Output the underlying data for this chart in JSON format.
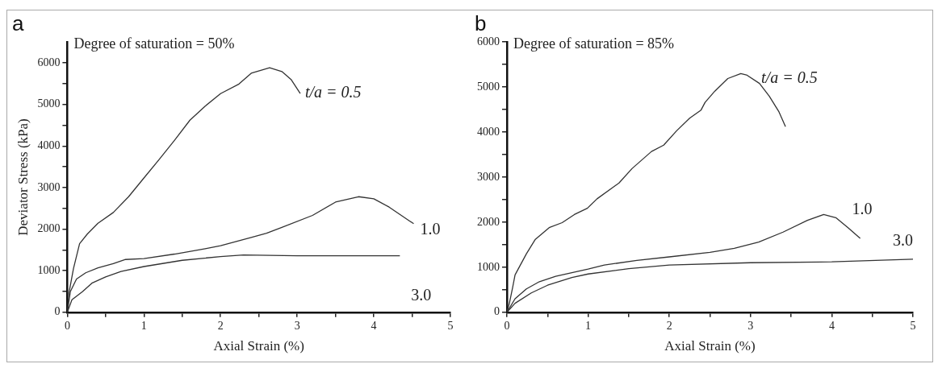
{
  "chart_data": [
    {
      "type": "line",
      "title": "a",
      "annotations": [
        "Degree of saturation = 50%"
      ],
      "xlabel": "Axial Strain (%)",
      "ylabel": "Deviator Stress (kPa)",
      "xlim": [
        0,
        5
      ],
      "xticks": [
        0,
        {
          "value": 0.5,
          "label": null
        },
        1,
        {
          "value": 1.5,
          "label": null
        },
        2,
        {
          "value": 2.5,
          "label": null
        },
        3,
        {
          "value": 3.5,
          "label": null
        },
        4,
        {
          "value": 4.5,
          "label": null
        },
        5
      ],
      "ylim": [
        0,
        6500
      ],
      "yticks": [
        0,
        {
          "value": 500,
          "label": null
        },
        1000,
        {
          "value": 1500,
          "label": null
        },
        2000,
        {
          "value": 2500,
          "label": null
        },
        3000,
        {
          "value": 3500,
          "label": null
        },
        4000,
        {
          "value": 4500,
          "label": null
        },
        5000,
        {
          "value": 5500,
          "label": null
        },
        6000
      ],
      "grid": false,
      "legend": false,
      "marker": "none",
      "line_style": "solid",
      "series": [
        {
          "name": "t/a = 0.5",
          "color": "#333333",
          "x": [
            0,
            0.02,
            0.08,
            0.16,
            0.26,
            0.4,
            0.6,
            0.8,
            1.0,
            1.2,
            1.4,
            1.6,
            1.8,
            2.0,
            2.24,
            2.4,
            2.64,
            2.8,
            2.92,
            3.04
          ],
          "values": [
            0,
            450,
            1050,
            1650,
            1880,
            2140,
            2400,
            2780,
            3230,
            3680,
            4140,
            4620,
            4960,
            5260,
            5490,
            5750,
            5880,
            5790,
            5600,
            5260
          ]
        },
        {
          "name": "1.0",
          "color": "#333333",
          "x": [
            0,
            0.04,
            0.12,
            0.24,
            0.4,
            0.6,
            0.76,
            1.0,
            1.4,
            1.8,
            2.0,
            2.4,
            2.6,
            2.8,
            3.2,
            3.5,
            3.8,
            4.0,
            4.2,
            4.52
          ],
          "values": [
            0,
            500,
            800,
            950,
            1070,
            1170,
            1270,
            1290,
            1400,
            1530,
            1600,
            1800,
            1900,
            2040,
            2330,
            2650,
            2780,
            2730,
            2530,
            2130
          ]
        },
        {
          "name": "3.0",
          "color": "#333333",
          "x": [
            0,
            0.06,
            0.2,
            0.32,
            0.5,
            0.7,
            1.0,
            1.5,
            2.0,
            2.3,
            3.0,
            4.34
          ],
          "values": [
            0,
            300,
            500,
            700,
            850,
            980,
            1100,
            1250,
            1340,
            1380,
            1360,
            1360
          ]
        }
      ]
    },
    {
      "type": "line",
      "title": "b",
      "annotations": [
        "Degree of saturation = 85%"
      ],
      "xlabel": "Axial Strain (%)",
      "xlim": [
        0,
        5
      ],
      "xticks": [
        0,
        {
          "value": 0.5,
          "label": null
        },
        1,
        {
          "value": 1.5,
          "label": null
        },
        2,
        {
          "value": 2.5,
          "label": null
        },
        3,
        {
          "value": 3.5,
          "label": null
        },
        4,
        {
          "value": 4.5,
          "label": null
        },
        5
      ],
      "ylim": [
        0,
        6000
      ],
      "yticks": [
        0,
        {
          "value": 500,
          "label": null
        },
        1000,
        {
          "value": 1500,
          "label": null
        },
        2000,
        {
          "value": 2500,
          "label": null
        },
        3000,
        {
          "value": 3500,
          "label": null
        },
        4000,
        {
          "value": 4500,
          "label": null
        },
        5000,
        {
          "value": 5500,
          "label": null
        },
        6000
      ],
      "grid": false,
      "legend": false,
      "marker": "none",
      "line_style": "solid",
      "series": [
        {
          "name": "t/a = 0.5",
          "color": "#333333",
          "x": [
            0,
            0.03,
            0.07,
            0.1,
            0.24,
            0.35,
            0.52,
            0.68,
            0.83,
            0.99,
            1.11,
            1.38,
            1.54,
            1.78,
            1.93,
            2.09,
            2.25,
            2.39,
            2.44,
            2.56,
            2.72,
            2.88,
            2.95,
            3.11,
            3.23,
            3.35,
            3.43
          ],
          "values": [
            0,
            200,
            550,
            830,
            1300,
            1620,
            1880,
            1990,
            2170,
            2310,
            2520,
            2870,
            3190,
            3570,
            3710,
            4030,
            4310,
            4490,
            4660,
            4910,
            5190,
            5300,
            5270,
            5080,
            4800,
            4450,
            4120
          ]
        },
        {
          "name": "1.0",
          "color": "#333333",
          "x": [
            0,
            0.1,
            0.24,
            0.4,
            0.6,
            0.8,
            1.0,
            1.2,
            1.6,
            2.0,
            2.5,
            2.8,
            3.1,
            3.4,
            3.7,
            3.9,
            4.05,
            4.2,
            4.35
          ],
          "values": [
            0,
            300,
            520,
            680,
            800,
            880,
            960,
            1050,
            1150,
            1230,
            1330,
            1420,
            1560,
            1780,
            2040,
            2170,
            2100,
            1880,
            1640
          ]
        },
        {
          "name": "3.0",
          "color": "#333333",
          "x": [
            0,
            0.1,
            0.3,
            0.5,
            0.8,
            1.0,
            1.5,
            2.0,
            3.0,
            4.0,
            5.0
          ],
          "values": [
            0,
            200,
            430,
            600,
            770,
            850,
            970,
            1050,
            1100,
            1120,
            1180
          ]
        }
      ]
    }
  ]
}
